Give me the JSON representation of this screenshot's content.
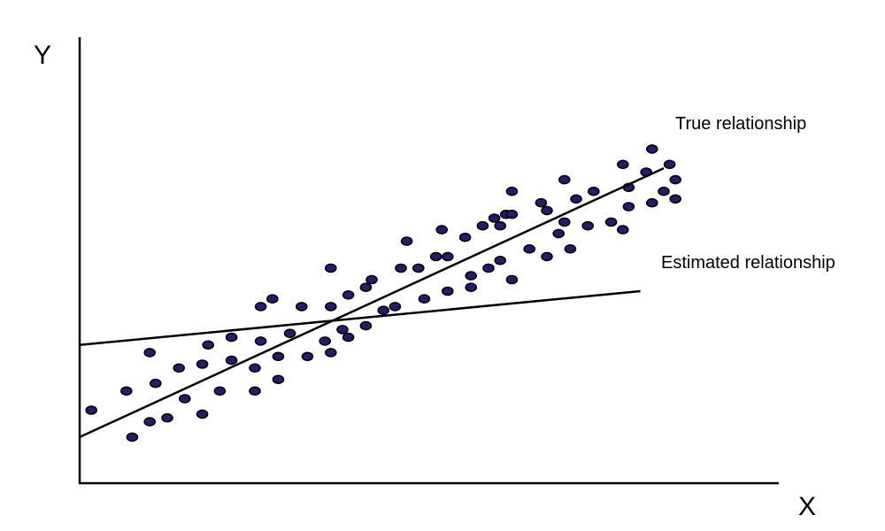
{
  "chart_data": {
    "type": "scatter",
    "title": "",
    "xlabel": "X",
    "ylabel": "Y",
    "xlim": [
      0,
      10
    ],
    "ylim": [
      0,
      10
    ],
    "grid": false,
    "point_color": "#2a1a6e",
    "points": [
      [
        0.2,
        1.9
      ],
      [
        0.8,
        2.4
      ],
      [
        0.9,
        1.2
      ],
      [
        1.2,
        1.6
      ],
      [
        1.2,
        3.4
      ],
      [
        1.3,
        2.6
      ],
      [
        1.5,
        1.7
      ],
      [
        1.7,
        3.0
      ],
      [
        1.8,
        2.2
      ],
      [
        2.1,
        3.1
      ],
      [
        2.1,
        1.8
      ],
      [
        2.2,
        3.6
      ],
      [
        2.4,
        2.4
      ],
      [
        2.6,
        3.2
      ],
      [
        2.6,
        3.8
      ],
      [
        3.0,
        2.4
      ],
      [
        3.0,
        3.0
      ],
      [
        3.1,
        4.6
      ],
      [
        3.1,
        3.7
      ],
      [
        3.3,
        4.8
      ],
      [
        3.4,
        2.7
      ],
      [
        3.4,
        3.3
      ],
      [
        3.6,
        3.9
      ],
      [
        3.8,
        4.6
      ],
      [
        3.9,
        3.3
      ],
      [
        4.2,
        3.7
      ],
      [
        4.3,
        5.6
      ],
      [
        4.3,
        4.6
      ],
      [
        4.3,
        3.4
      ],
      [
        4.5,
        4.0
      ],
      [
        4.6,
        3.8
      ],
      [
        4.6,
        4.9
      ],
      [
        4.9,
        4.1
      ],
      [
        4.9,
        5.1
      ],
      [
        5.0,
        5.3
      ],
      [
        5.2,
        4.5
      ],
      [
        5.4,
        4.6
      ],
      [
        5.5,
        5.6
      ],
      [
        5.6,
        6.3
      ],
      [
        5.8,
        5.6
      ],
      [
        5.9,
        4.8
      ],
      [
        6.1,
        5.9
      ],
      [
        6.2,
        6.6
      ],
      [
        6.3,
        5.9
      ],
      [
        6.3,
        5.0
      ],
      [
        6.6,
        6.4
      ],
      [
        6.7,
        5.1
      ],
      [
        6.7,
        5.4
      ],
      [
        6.9,
        6.7
      ],
      [
        7.0,
        5.6
      ],
      [
        7.1,
        6.9
      ],
      [
        7.2,
        6.7
      ],
      [
        7.2,
        5.8
      ],
      [
        7.3,
        7.0
      ],
      [
        7.4,
        7.6
      ],
      [
        7.4,
        7.0
      ],
      [
        7.4,
        5.3
      ],
      [
        7.7,
        6.1
      ],
      [
        7.9,
        7.3
      ],
      [
        8.0,
        7.1
      ],
      [
        8.0,
        5.9
      ],
      [
        8.2,
        6.5
      ],
      [
        8.3,
        6.8
      ],
      [
        8.3,
        7.9
      ],
      [
        8.4,
        6.1
      ],
      [
        8.5,
        7.4
      ],
      [
        8.7,
        6.7
      ],
      [
        8.8,
        7.6
      ],
      [
        9.1,
        6.8
      ],
      [
        9.3,
        6.6
      ],
      [
        9.3,
        8.3
      ],
      [
        9.4,
        7.7
      ],
      [
        9.4,
        7.2
      ],
      [
        9.7,
        8.1
      ],
      [
        9.8,
        8.7
      ],
      [
        9.8,
        7.3
      ],
      [
        10.0,
        7.6
      ],
      [
        10.1,
        8.3
      ],
      [
        10.2,
        7.9
      ],
      [
        10.2,
        7.4
      ]
    ],
    "lines": [
      {
        "name": "True relationship",
        "x": [
          0,
          10.0
        ],
        "y": [
          1.2,
          8.2
        ]
      },
      {
        "name": "Estimated relationship",
        "x": [
          0,
          9.6
        ],
        "y": [
          3.6,
          5.0
        ]
      }
    ]
  }
}
